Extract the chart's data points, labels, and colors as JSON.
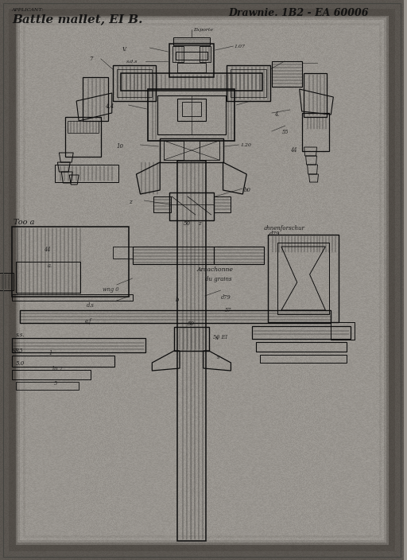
{
  "bg_color": "#9a9690",
  "line_color": "#0d0d0d",
  "fig_width": 5.12,
  "fig_height": 7.04,
  "dpi": 100,
  "title_left": "Battle mallet, EI B.",
  "subtitle_left": "APPLICANT:",
  "title_right": "Drawnie. 1B2 - EA 60006"
}
